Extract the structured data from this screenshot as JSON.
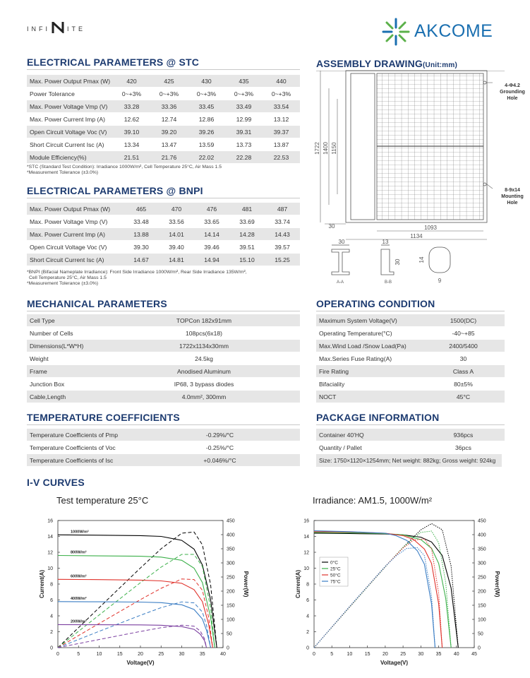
{
  "header": {
    "logo_left": [
      "INFI",
      "ITE"
    ],
    "logo_right": "AKCOME"
  },
  "stc": {
    "title": "ELECTRICAL PARAMETERS @ STC",
    "rows": [
      [
        "Max. Power Output Pmax (W)",
        "420",
        "425",
        "430",
        "435",
        "440"
      ],
      [
        "Power Tolerance",
        "0~+3%",
        "0~+3%",
        "0~+3%",
        "0~+3%",
        "0~+3%"
      ],
      [
        "Max. Power Voltage Vmp (V)",
        "33.28",
        "33.36",
        "33.45",
        "33.49",
        "33.54"
      ],
      [
        "Max. Power Current Imp (A)",
        "12.62",
        "12.74",
        "12.86",
        "12.99",
        "13.12"
      ],
      [
        "Open Circuit Voltage Voc (V)",
        "39.10",
        "39.20",
        "39.26",
        "39.31",
        "39.37"
      ],
      [
        "Short Circuit Current Isc (A)",
        "13.34",
        "13.47",
        "13.59",
        "13.73",
        "13.87"
      ],
      [
        "Module Efficiency(%)",
        "21.51",
        "21.76",
        "22.02",
        "22.28",
        "22.53"
      ]
    ],
    "notes": [
      "*STC (Standard Test Condition): Irradiance 1000W/m², Cell Temperature 25°C, Air Mass 1.5",
      "*Measurement Tolerance (±3.0%)"
    ]
  },
  "bnpi": {
    "title": "ELECTRICAL PARAMETERS @ BNPI",
    "rows": [
      [
        "Max. Power Output Pmax (W)",
        "465",
        "470",
        "476",
        "481",
        "487"
      ],
      [
        "Max. Power Voltage Vmp (V)",
        "33.48",
        "33.56",
        "33.65",
        "33.69",
        "33.74"
      ],
      [
        "Max. Power Current Imp (A)",
        "13.88",
        "14.01",
        "14.14",
        "14.28",
        "14.43"
      ],
      [
        "Open Circuit Voltage Voc (V)",
        "39.30",
        "39.40",
        "39.46",
        "39.51",
        "39.57"
      ],
      [
        "Short Circuit Current Isc (A)",
        "14.67",
        "14.81",
        "14.94",
        "15.10",
        "15.25"
      ]
    ],
    "notes": [
      "*BNPI (Bifacial Nameplate Irradiance): Front Side Irradiance 1000W/m², Rear Side Irradiance 135W/m²,",
      "Cell Temperature 25°C, Air Mass 1.5",
      "*Measurement Tolerance (±3.0%)"
    ]
  },
  "mechanical": {
    "title": "MECHANICAL PARAMETERS",
    "rows": [
      [
        "Cell Type",
        "TOPCon 182x91mm"
      ],
      [
        "Number of Cells",
        "108pcs(6x18)"
      ],
      [
        "Dimensions(L*W*H)",
        "1722x1134x30mm"
      ],
      [
        "Weight",
        "24.5kg"
      ],
      [
        "Frame",
        "Anodised Aluminum"
      ],
      [
        "Junction Box",
        "IP68, 3 bypass diodes"
      ],
      [
        "Cable,Length",
        "4.0mm², 300mm"
      ]
    ]
  },
  "operating": {
    "title": "OPERATING CONDITION",
    "rows": [
      [
        "Maximum System Voltage(V)",
        "1500(DC)"
      ],
      [
        "Operating Temperature(°C)",
        "-40~+85"
      ],
      [
        "Max.Wind Load /Snow Load(Pa)",
        "2400/5400"
      ],
      [
        "Max.Series Fuse Rating(A)",
        "30"
      ],
      [
        "Fire Rating",
        "Class A"
      ],
      [
        "Bifaciality",
        "80±5%"
      ],
      [
        "NOCT",
        "45°C"
      ]
    ]
  },
  "temperature": {
    "title": "TEMPERATURE COEFFICIENTS",
    "rows": [
      [
        "Temperature Coefficients of Pmp",
        "-0.29%/°C"
      ],
      [
        "Temperature Coefficients of Voc",
        "-0.25%/°C"
      ],
      [
        "Temperature Coefficients of Isc",
        "+0.046%/°C"
      ]
    ]
  },
  "package": {
    "title": "PACKAGE INFORMATION",
    "rows": [
      [
        "Container 40'HQ",
        "936pcs"
      ],
      [
        "Quantity / Pallet",
        "36pcs"
      ]
    ],
    "note": "Size: 1750×1120×1254mm; Net weight: 882kg; Gross weight: 924kg"
  },
  "drawing": {
    "title": "ASSEMBLY DRAWING",
    "unit": "(Unit:mm)",
    "grounding": [
      "4-Φ4.2",
      "Grounding",
      "Hole"
    ],
    "mounting": [
      "8-9x14",
      "Mounting",
      "Hole"
    ],
    "length": "1722",
    "mount_pitch": "1400",
    "mount_pitch_2": "1150",
    "frame": "30",
    "width_inner": "1093",
    "width": "1134",
    "section_aa": "A-A",
    "section_bb": "B-B",
    "aa_width": "30",
    "bb_width": "13",
    "bb_height": "30",
    "hole_height": "14",
    "hole_width": "9"
  },
  "iv_curves": {
    "title": "I-V CURVES",
    "charts": [
      {
        "type": "line",
        "title": "Test temperature 25°C",
        "xlabel": "Voltage(V)",
        "ylabel": "Current(A)",
        "y2label": "Power(W)",
        "xlim": [
          0,
          40
        ],
        "xticks": [
          0,
          5,
          10,
          15,
          20,
          25,
          30,
          35,
          40
        ],
        "ylim": [
          0,
          16
        ],
        "yticks": [
          0,
          2,
          4,
          6,
          8,
          10,
          12,
          14,
          16
        ],
        "y2lim": [
          0,
          450
        ],
        "y2ticks": [
          0,
          50,
          100,
          150,
          200,
          250,
          300,
          350,
          400,
          450
        ],
        "power_dash": "dashed",
        "series": [
          {
            "name": "1000W/m²",
            "color": "#000000",
            "x": [
              0,
              10,
              20,
              25,
              30,
              33,
              35,
              37,
              38.5
            ],
            "values": [
              14.2,
              14.15,
              14.1,
              14.0,
              13.5,
              12.4,
              10.4,
              6.0,
              0
            ],
            "power": [
              0,
              141.5,
              282,
              350,
              405,
              409.2,
              364,
              222,
              0
            ]
          },
          {
            "name": "800W/m²",
            "color": "#3cb04a",
            "x": [
              0,
              10,
              20,
              25,
              30,
              33,
              35,
              37,
              38
            ],
            "values": [
              11.6,
              11.55,
              11.5,
              11.4,
              11.0,
              10.0,
              8.2,
              3.8,
              0
            ],
            "power": [
              0,
              115.5,
              230,
              285,
              330,
              330,
              287,
              140.6,
              0
            ]
          },
          {
            "name": "600W/m²",
            "color": "#e0322b",
            "x": [
              0,
              10,
              20,
              25,
              30,
              33,
              35,
              36.5,
              37.5
            ],
            "values": [
              8.6,
              8.56,
              8.5,
              8.4,
              8.1,
              7.3,
              5.8,
              3.0,
              0
            ],
            "power": [
              0,
              85.6,
              170,
              210,
              243,
              240.9,
              203,
              109.5,
              0
            ]
          },
          {
            "name": "400W/m²",
            "color": "#3a7dc4",
            "x": [
              0,
              10,
              20,
              25,
              30,
              33,
              35,
              36,
              37
            ],
            "values": [
              5.8,
              5.77,
              5.73,
              5.66,
              5.4,
              4.8,
              3.6,
              2.2,
              0
            ],
            "power": [
              0,
              57.7,
              114.6,
              141.5,
              162,
              158.4,
              126,
              79.2,
              0
            ]
          },
          {
            "name": "200W/m²",
            "color": "#7b3fa0",
            "x": [
              0,
              10,
              20,
              25,
              30,
              33,
              34.5,
              35.5,
              36
            ],
            "values": [
              2.9,
              2.88,
              2.86,
              2.82,
              2.65,
              2.3,
              1.7,
              0.9,
              0
            ],
            "power": [
              0,
              28.8,
              57.2,
              70.5,
              79.5,
              75.9,
              58.65,
              31.95,
              0
            ]
          }
        ]
      },
      {
        "type": "line",
        "title": "Irradiance: AM1.5, 1000W/m²",
        "xlabel": "Voltage(V)",
        "ylabel": "Current(A)",
        "y2label": "Power(W)",
        "xlim": [
          0,
          45
        ],
        "xticks": [
          0,
          5,
          10,
          15,
          20,
          25,
          30,
          35,
          40,
          45
        ],
        "ylim": [
          0,
          16
        ],
        "yticks": [
          0,
          2,
          4,
          6,
          8,
          10,
          12,
          14,
          16
        ],
        "y2lim": [
          0,
          450
        ],
        "y2ticks": [
          0,
          50,
          100,
          150,
          200,
          250,
          300,
          350,
          400,
          450
        ],
        "power_dash": "dotted",
        "legend": "upper left",
        "series": [
          {
            "name": "0°C",
            "color": "#000000",
            "x": [
              0,
              10,
              20,
              25,
              30,
              33,
              36,
              38.5,
              40.5
            ],
            "values": [
              14.4,
              14.36,
              14.3,
              14.2,
              13.9,
              13.3,
              11.6,
              7.5,
              0
            ],
            "power": [
              0,
              143.6,
              286,
              355,
              417,
              438.9,
              417.6,
              288.75,
              0
            ]
          },
          {
            "name": "25°C",
            "color": "#3cb04a",
            "x": [
              0,
              10,
              20,
              25,
              30,
              33,
              35,
              37,
              38.5
            ],
            "values": [
              14.5,
              14.45,
              14.35,
              14.2,
              13.6,
              12.5,
              10.6,
              6.2,
              0
            ],
            "power": [
              0,
              144.5,
              287,
              355,
              408,
              412.5,
              371,
              229.4,
              0
            ]
          },
          {
            "name": "50°C",
            "color": "#e0322b",
            "x": [
              0,
              10,
              20,
              25,
              28,
              31,
              33,
              35,
              36
            ],
            "values": [
              14.6,
              14.55,
              14.4,
              14.1,
              13.6,
              12.4,
              10.6,
              5.5,
              0
            ],
            "power": [
              0,
              145.5,
              288,
              352.5,
              380.8,
              384.4,
              349.8,
              192.5,
              0
            ]
          },
          {
            "name": "75°C",
            "color": "#3a7dc4",
            "x": [
              0,
              10,
              20,
              23,
              26,
              29,
              31,
              33,
              34
            ],
            "values": [
              14.7,
              14.6,
              14.4,
              14.1,
              13.5,
              12.2,
              10.5,
              5.5,
              0
            ],
            "power": [
              0,
              146,
              288,
              324.3,
              351,
              353.8,
              325.5,
              181.5,
              0
            ]
          }
        ]
      }
    ]
  }
}
